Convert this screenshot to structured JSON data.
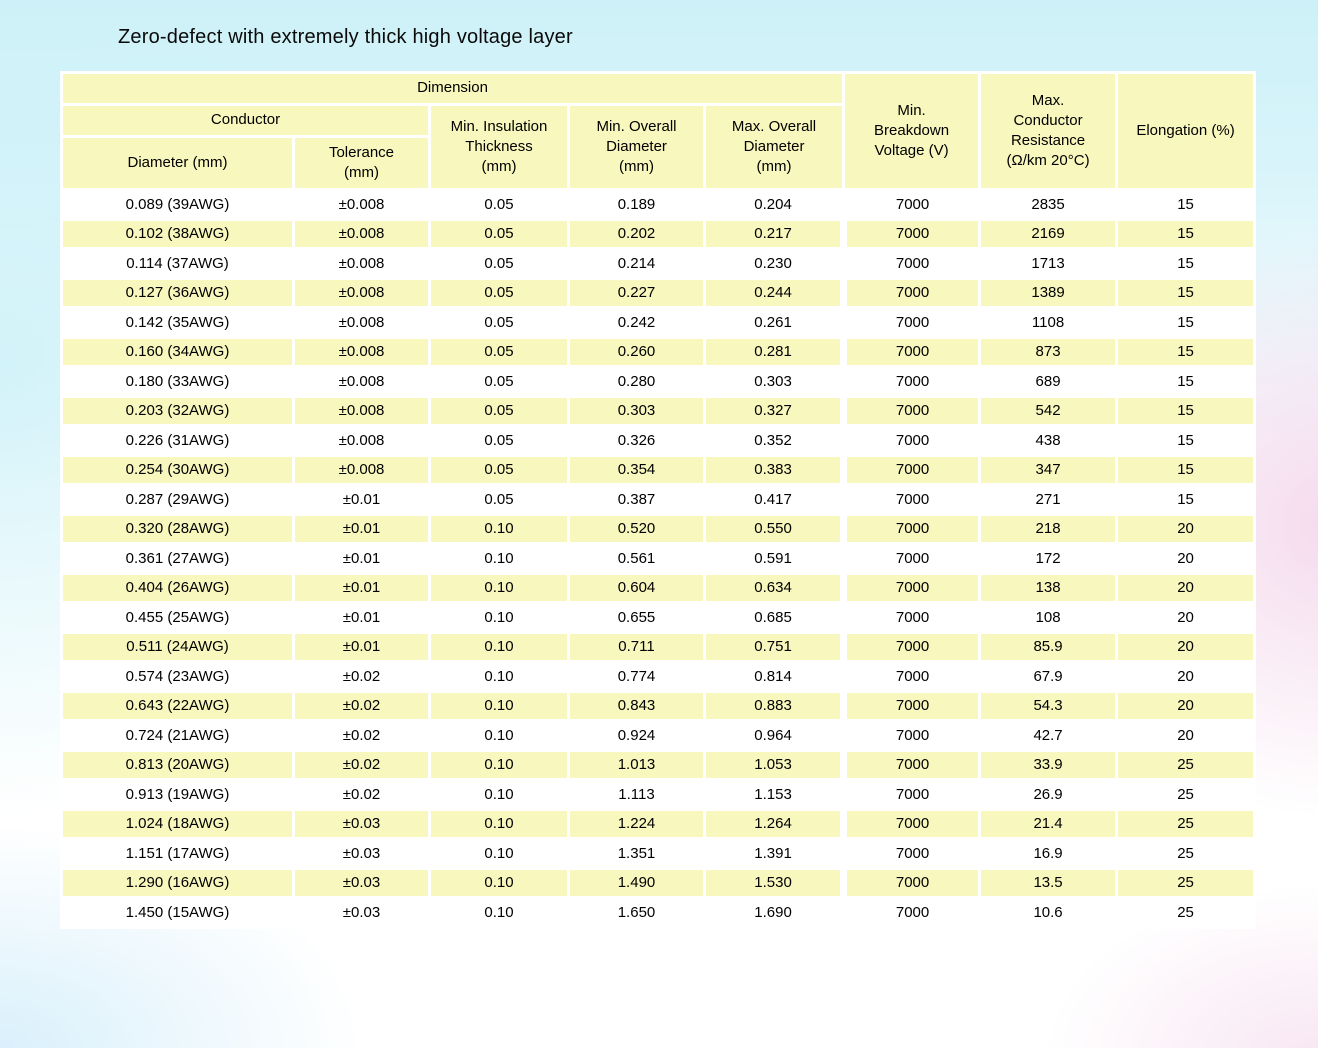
{
  "page": {
    "title": "Zero-defect with extremely thick high voltage layer"
  },
  "colors": {
    "row_yellow": "#f8f7bd",
    "grid_white": "#ffffff",
    "bg_cyan": "#cdf1f8",
    "bg_pink": "#f4d9ec",
    "text": "#000000"
  },
  "table": {
    "header": {
      "dimension": "Dimension",
      "conductor": "Conductor",
      "diameter": "Diameter (mm)",
      "tolerance": "Tolerance\n(mm)",
      "min_insulation_thickness": "Min. Insulation\nThickness\n(mm)",
      "min_overall_diameter": "Min. Overall\nDiameter\n(mm)",
      "max_overall_diameter": "Max. Overall\nDiameter\n(mm)",
      "min_breakdown_voltage": "Min.\nBreakdown\nVoltage (V)",
      "max_conductor_resistance": "Max.\nConductor\nResistance\n(Ω/km 20°C)",
      "elongation": "Elongation (%)"
    },
    "rows": [
      [
        "0.089 (39AWG)",
        "±0.008",
        "0.05",
        "0.189",
        "0.204",
        "7000",
        "2835",
        "15"
      ],
      [
        "0.102 (38AWG)",
        "±0.008",
        "0.05",
        "0.202",
        "0.217",
        "7000",
        "2169",
        "15"
      ],
      [
        "0.114 (37AWG)",
        "±0.008",
        "0.05",
        "0.214",
        "0.230",
        "7000",
        "1713",
        "15"
      ],
      [
        "0.127 (36AWG)",
        "±0.008",
        "0.05",
        "0.227",
        "0.244",
        "7000",
        "1389",
        "15"
      ],
      [
        "0.142 (35AWG)",
        "±0.008",
        "0.05",
        "0.242",
        "0.261",
        "7000",
        "1108",
        "15"
      ],
      [
        "0.160 (34AWG)",
        "±0.008",
        "0.05",
        "0.260",
        "0.281",
        "7000",
        "873",
        "15"
      ],
      [
        "0.180 (33AWG)",
        "±0.008",
        "0.05",
        "0.280",
        "0.303",
        "7000",
        "689",
        "15"
      ],
      [
        "0.203 (32AWG)",
        "±0.008",
        "0.05",
        "0.303",
        "0.327",
        "7000",
        "542",
        "15"
      ],
      [
        "0.226 (31AWG)",
        "±0.008",
        "0.05",
        "0.326",
        "0.352",
        "7000",
        "438",
        "15"
      ],
      [
        "0.254 (30AWG)",
        "±0.008",
        "0.05",
        "0.354",
        "0.383",
        "7000",
        "347",
        "15"
      ],
      [
        "0.287 (29AWG)",
        "±0.01",
        "0.05",
        "0.387",
        "0.417",
        "7000",
        "271",
        "15"
      ],
      [
        "0.320 (28AWG)",
        "±0.01",
        "0.10",
        "0.520",
        "0.550",
        "7000",
        "218",
        "20"
      ],
      [
        "0.361 (27AWG)",
        "±0.01",
        "0.10",
        "0.561",
        "0.591",
        "7000",
        "172",
        "20"
      ],
      [
        "0.404 (26AWG)",
        "±0.01",
        "0.10",
        "0.604",
        "0.634",
        "7000",
        "138",
        "20"
      ],
      [
        "0.455 (25AWG)",
        "±0.01",
        "0.10",
        "0.655",
        "0.685",
        "7000",
        "108",
        "20"
      ],
      [
        "0.511 (24AWG)",
        "±0.01",
        "0.10",
        "0.711",
        "0.751",
        "7000",
        "85.9",
        "20"
      ],
      [
        "0.574 (23AWG)",
        "±0.02",
        "0.10",
        "0.774",
        "0.814",
        "7000",
        "67.9",
        "20"
      ],
      [
        "0.643 (22AWG)",
        "±0.02",
        "0.10",
        "0.843",
        "0.883",
        "7000",
        "54.3",
        "20"
      ],
      [
        "0.724 (21AWG)",
        "±0.02",
        "0.10",
        "0.924",
        "0.964",
        "7000",
        "42.7",
        "20"
      ],
      [
        "0.813 (20AWG)",
        "±0.02",
        "0.10",
        "1.013",
        "1.053",
        "7000",
        "33.9",
        "25"
      ],
      [
        "0.913 (19AWG)",
        "±0.02",
        "0.10",
        "1.113",
        "1.153",
        "7000",
        "26.9",
        "25"
      ],
      [
        "1.024 (18AWG)",
        "±0.03",
        "0.10",
        "1.224",
        "1.264",
        "7000",
        "21.4",
        "25"
      ],
      [
        "1.151 (17AWG)",
        "±0.03",
        "0.10",
        "1.351",
        "1.391",
        "7000",
        "16.9",
        "25"
      ],
      [
        "1.290 (16AWG)",
        "±0.03",
        "0.10",
        "1.490",
        "1.530",
        "7000",
        "13.5",
        "25"
      ],
      [
        "1.450 (15AWG)",
        "±0.03",
        "0.10",
        "1.650",
        "1.690",
        "7000",
        "10.6",
        "25"
      ]
    ]
  }
}
